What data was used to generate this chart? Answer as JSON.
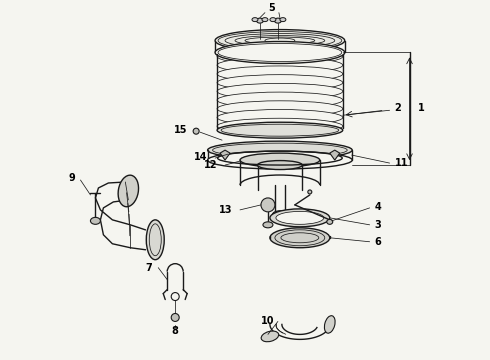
{
  "background_color": "#f5f5f0",
  "line_color": "#1a1a1a",
  "fig_width": 4.9,
  "fig_height": 3.6,
  "dpi": 100,
  "lw_main": 1.0,
  "lw_thin": 0.55,
  "lw_thick": 1.4,
  "label_fontsize": 7.0
}
